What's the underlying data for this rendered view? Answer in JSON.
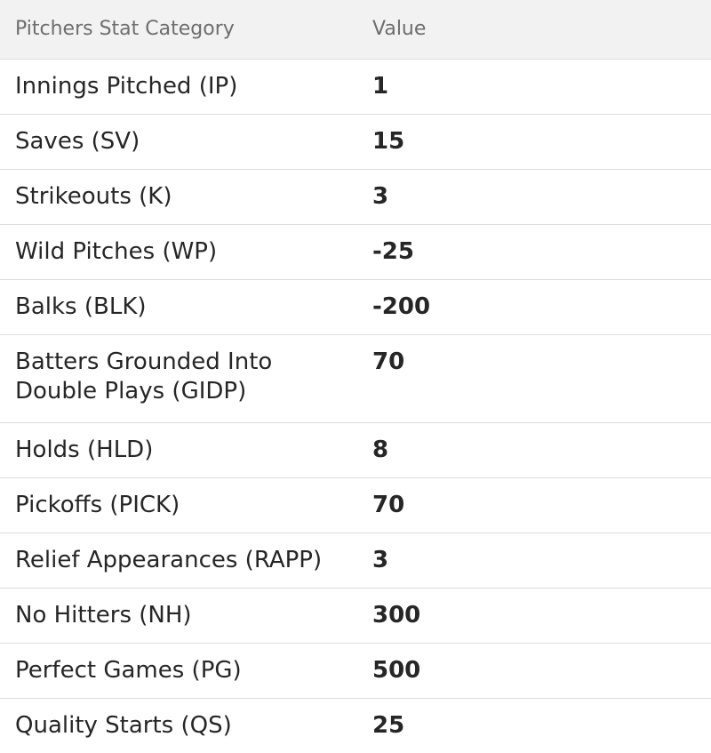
{
  "table": {
    "headers": {
      "category": "Pitchers Stat Category",
      "value": "Value"
    },
    "rows": [
      {
        "category": "Innings Pitched (IP)",
        "value": "1"
      },
      {
        "category": "Saves (SV)",
        "value": "15"
      },
      {
        "category": "Strikeouts (K)",
        "value": "3"
      },
      {
        "category": "Wild Pitches (WP)",
        "value": "-25"
      },
      {
        "category": "Balks (BLK)",
        "value": "-200"
      },
      {
        "category": "Batters Grounded Into Double Plays (GIDP)",
        "value": "70"
      },
      {
        "category": "Holds (HLD)",
        "value": "8"
      },
      {
        "category": "Pickoffs (PICK)",
        "value": "70"
      },
      {
        "category": "Relief Appearances (RAPP)",
        "value": "3"
      },
      {
        "category": "No Hitters (NH)",
        "value": "300"
      },
      {
        "category": "Perfect Games (PG)",
        "value": "500"
      },
      {
        "category": "Quality Starts (QS)",
        "value": "25"
      }
    ]
  }
}
